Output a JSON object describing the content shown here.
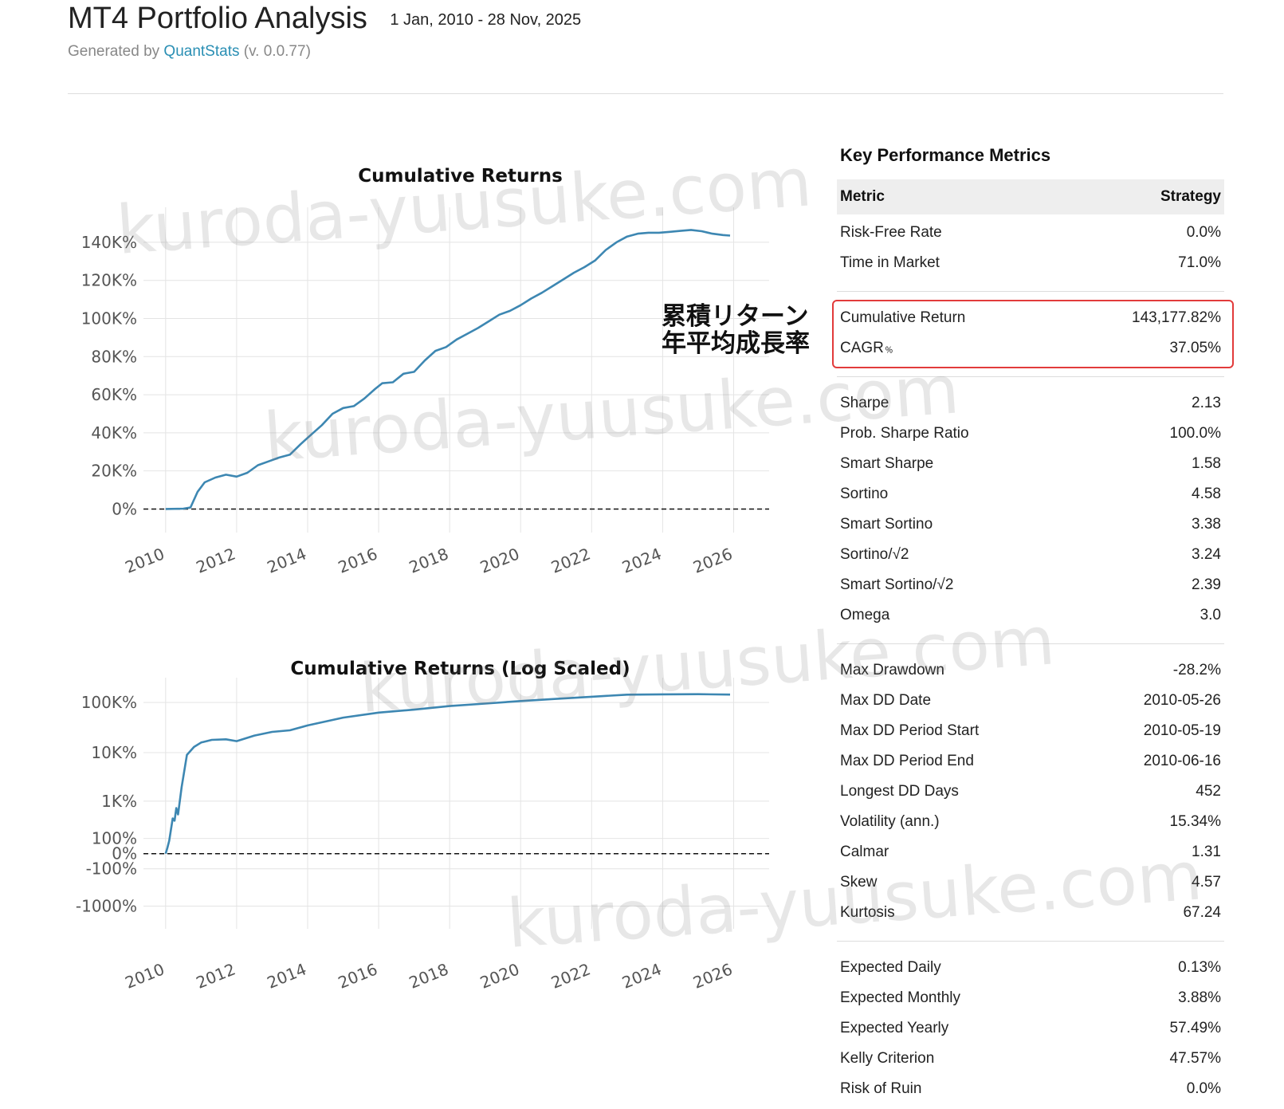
{
  "header": {
    "title": "MT4 Portfolio Analysis",
    "date_range": "1 Jan, 2010 - 28 Nov, 2025",
    "generated_prefix": "Generated by ",
    "generator_link": "QuantStats",
    "generator_version": " (v. 0.0.77)"
  },
  "annotation": {
    "line1": "累積リターン",
    "line2": "年平均成長率"
  },
  "watermark_text": "kuroda-yuusuke.com",
  "colors": {
    "series": "#3d87b2",
    "highlight_border": "#e23b3b",
    "link": "#2a8fb4"
  },
  "metrics": {
    "title": "Key Performance Metrics",
    "col_metric": "Metric",
    "col_strategy": "Strategy",
    "group1": [
      {
        "label": "Risk-Free Rate",
        "value": "0.0%"
      },
      {
        "label": "Time in Market",
        "value": "71.0%"
      }
    ],
    "group2": [
      {
        "label": "Cumulative Return",
        "value": "143,177.82%"
      },
      {
        "label": "CAGR",
        "suffix": "﹪",
        "value": "37.05%"
      }
    ],
    "group3": [
      {
        "label": "Sharpe",
        "value": "2.13"
      },
      {
        "label": "Prob. Sharpe Ratio",
        "value": "100.0%"
      },
      {
        "label": "Smart Sharpe",
        "value": "1.58"
      },
      {
        "label": "Sortino",
        "value": "4.58"
      },
      {
        "label": "Smart Sortino",
        "value": "3.38"
      },
      {
        "label": "Sortino/√2",
        "value": "3.24"
      },
      {
        "label": "Smart Sortino/√2",
        "value": "2.39"
      },
      {
        "label": "Omega",
        "value": "3.0"
      }
    ],
    "group4": [
      {
        "label": "Max Drawdown",
        "value": "-28.2%"
      },
      {
        "label": "Max DD Date",
        "value": "2010-05-26"
      },
      {
        "label": "Max DD Period Start",
        "value": "2010-05-19"
      },
      {
        "label": "Max DD Period End",
        "value": "2010-06-16"
      },
      {
        "label": "Longest DD Days",
        "value": "452"
      },
      {
        "label": "Volatility (ann.)",
        "value": "15.34%"
      },
      {
        "label": "Calmar",
        "value": "1.31"
      },
      {
        "label": "Skew",
        "value": "4.57"
      },
      {
        "label": "Kurtosis",
        "value": "67.24"
      }
    ],
    "group5": [
      {
        "label": "Expected Daily",
        "value": "0.13%"
      },
      {
        "label": "Expected Monthly",
        "value": "3.88%"
      },
      {
        "label": "Expected Yearly",
        "value": "57.49%"
      },
      {
        "label": "Kelly Criterion",
        "value": "47.57%"
      },
      {
        "label": "Risk of Ruin",
        "value": "0.0%"
      }
    ]
  },
  "chart_data": [
    {
      "type": "line",
      "title": "Cumulative Returns",
      "xlabel": "",
      "ylabel": "",
      "x_ticks": [
        2010,
        2012,
        2014,
        2016,
        2018,
        2020,
        2022,
        2024,
        2026
      ],
      "x_tick_labels": [
        "2010",
        "2012",
        "2014",
        "2016",
        "2018",
        "2020",
        "2022",
        "2024",
        "2026"
      ],
      "y_ticks": [
        0,
        20000,
        40000,
        60000,
        80000,
        100000,
        120000,
        140000
      ],
      "y_tick_labels": [
        "0%",
        "20K%",
        "40K%",
        "60K%",
        "80K%",
        "100K%",
        "120K%",
        "140K%"
      ],
      "xlim": [
        2009.6,
        2027.0
      ],
      "ylim": [
        -4000,
        150000
      ],
      "grid": true,
      "baseline": 0,
      "series": [
        {
          "x": [
            2010.0,
            2010.5,
            2010.7,
            2010.9,
            2011.1,
            2011.4,
            2011.7,
            2012.0,
            2012.3,
            2012.6,
            2012.9,
            2013.2,
            2013.5,
            2013.8,
            2014.1,
            2014.4,
            2014.7,
            2015.0,
            2015.3,
            2015.6,
            2015.9,
            2016.1,
            2016.4,
            2016.7,
            2017.0,
            2017.3,
            2017.6,
            2017.9,
            2018.2,
            2018.5,
            2018.8,
            2019.1,
            2019.4,
            2019.7,
            2020.0,
            2020.3,
            2020.6,
            2020.9,
            2021.2,
            2021.5,
            2021.8,
            2022.1,
            2022.4,
            2022.7,
            2023.0,
            2023.3,
            2023.6,
            2023.9,
            2024.2,
            2024.5,
            2024.8,
            2025.1,
            2025.4,
            2025.7,
            2025.9
          ],
          "y": [
            0,
            200,
            800,
            9000,
            14000,
            16500,
            18000,
            17000,
            19000,
            23000,
            25000,
            27000,
            28500,
            34000,
            39000,
            44000,
            50000,
            53000,
            54000,
            58000,
            63000,
            66000,
            66500,
            71000,
            72000,
            78000,
            83000,
            85000,
            89000,
            92000,
            95000,
            98500,
            102000,
            104000,
            107000,
            110500,
            113500,
            117000,
            120500,
            124000,
            127000,
            130500,
            136000,
            140000,
            143000,
            144500,
            145000,
            145000,
            145500,
            146000,
            146500,
            145800,
            144500,
            143800,
            143500
          ]
        }
      ]
    },
    {
      "type": "line",
      "title": "Cumulative Returns (Log Scaled)",
      "xlabel": "",
      "ylabel": "",
      "y_scale": "symlog",
      "x_ticks": [
        2010,
        2012,
        2014,
        2016,
        2018,
        2020,
        2022,
        2024,
        2026
      ],
      "x_tick_labels": [
        "2010",
        "2012",
        "2014",
        "2016",
        "2018",
        "2020",
        "2022",
        "2024",
        "2026"
      ],
      "y_ticks": [
        -1000,
        -100,
        0,
        100,
        1000,
        10000,
        100000
      ],
      "y_tick_labels": [
        "-1000%",
        "-100%",
        "0%",
        "100%",
        "1K%",
        "10K%",
        "100K%"
      ],
      "xlim": [
        2009.6,
        2027.0
      ],
      "grid": true,
      "baseline": 0,
      "series": [
        {
          "x": [
            2010.0,
            2010.05,
            2010.1,
            2010.15,
            2010.2,
            2010.25,
            2010.3,
            2010.35,
            2010.45,
            2010.6,
            2010.8,
            2011.0,
            2011.3,
            2011.7,
            2012.0,
            2012.5,
            2013.0,
            2013.5,
            2014.0,
            2015.0,
            2016.0,
            2017.0,
            2018.0,
            2019.0,
            2020.0,
            2021.0,
            2022.0,
            2023.0,
            2024.0,
            2025.0,
            2025.9
          ],
          "y": [
            0,
            30,
            80,
            200,
            400,
            350,
            700,
            500,
            2000,
            9000,
            13000,
            16000,
            18000,
            18500,
            17000,
            22000,
            26000,
            28000,
            35000,
            50000,
            63000,
            72000,
            85000,
            95000,
            107000,
            118000,
            130000,
            143000,
            145000,
            146000,
            143500
          ]
        }
      ]
    }
  ]
}
